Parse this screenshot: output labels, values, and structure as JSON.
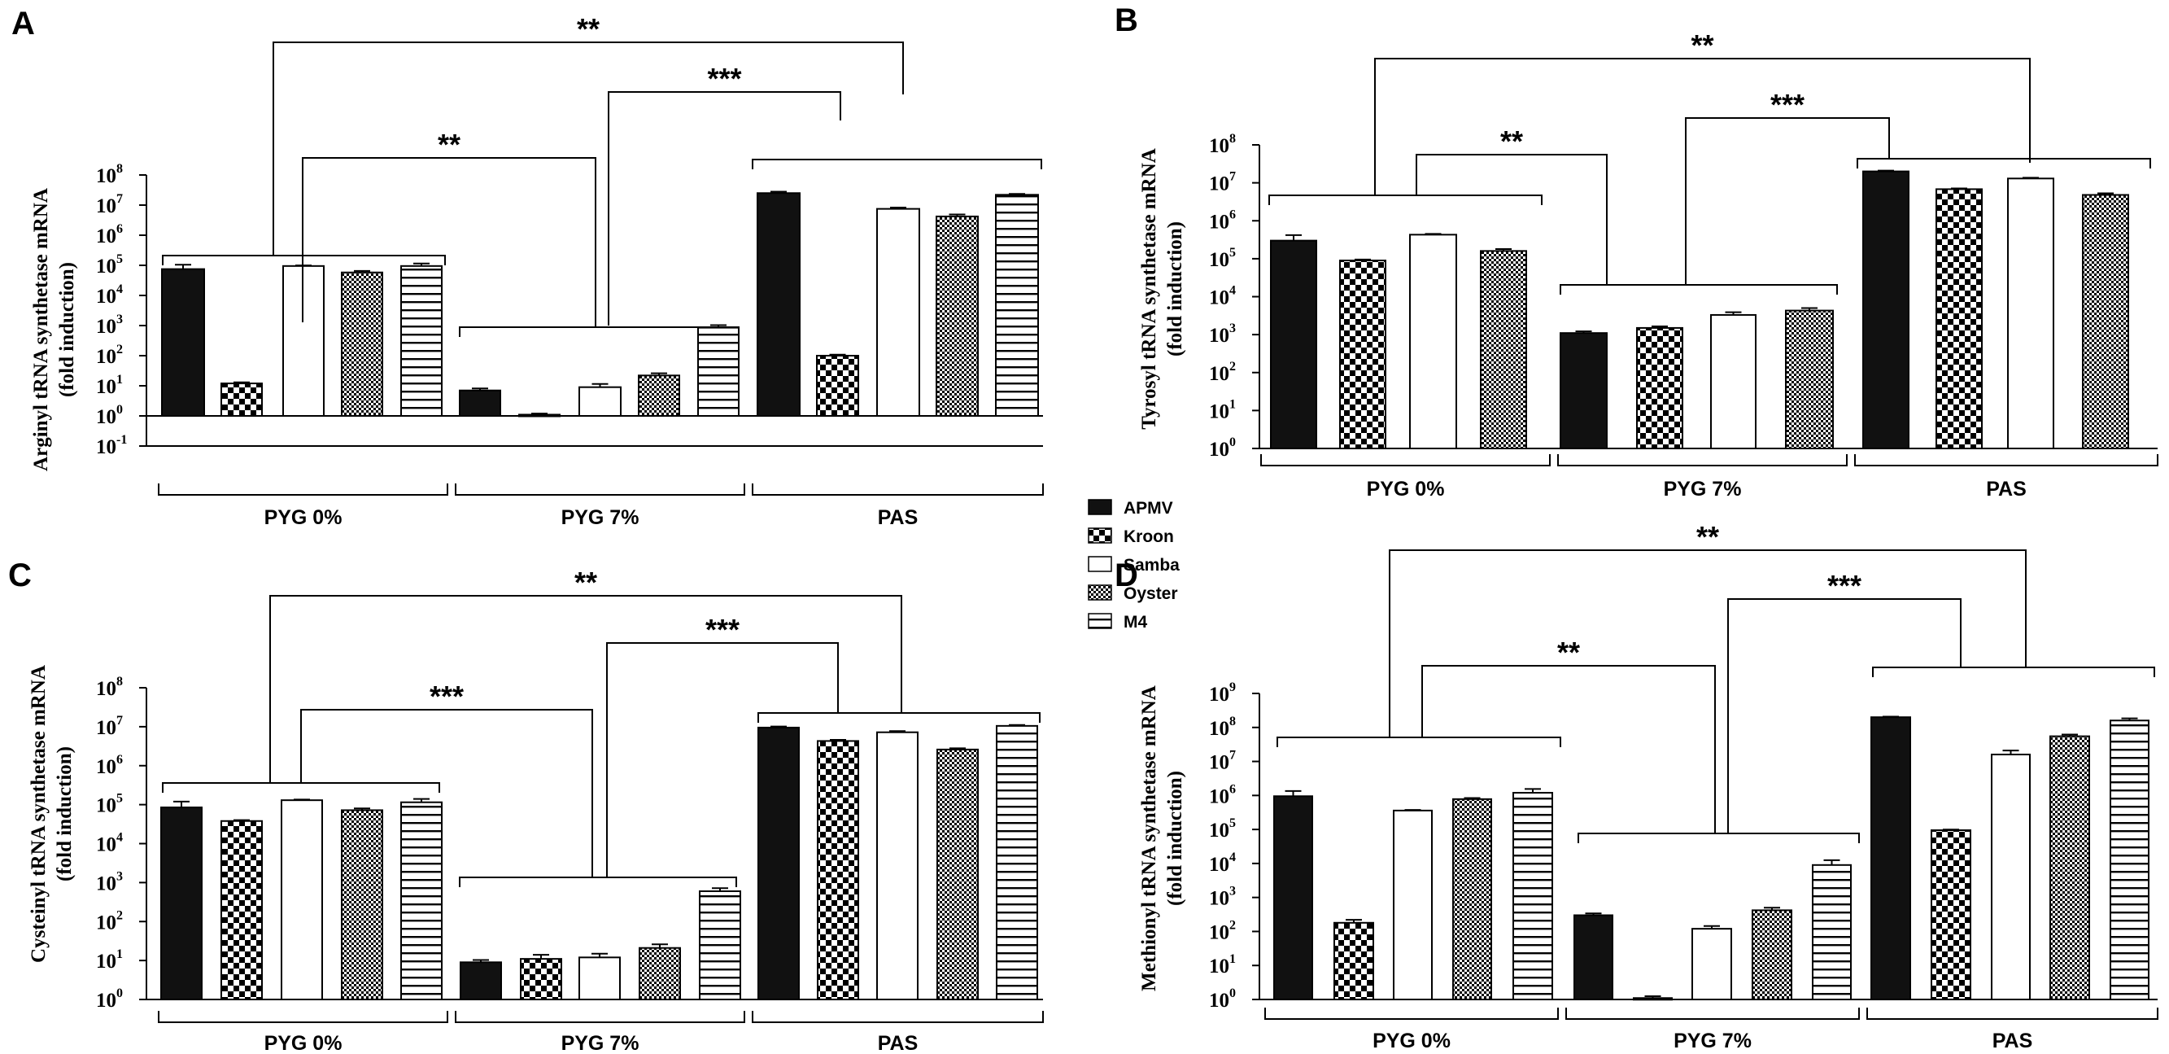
{
  "legend": [
    "APMV",
    "Kroon",
    "Samba",
    "Oyster",
    "M4"
  ],
  "group_labels": [
    "PYG 0%",
    "PYG 7%",
    "PAS"
  ],
  "chart_data": [
    {
      "panel": "A",
      "type": "bar",
      "scale": "log10",
      "ylabel_line1": "Arginyl tRNA synthetase mRNA",
      "ylabel_line2": "(fold induction)",
      "ylim_exp": [
        -1,
        8
      ],
      "y_ticks_exp": [
        -1,
        0,
        1,
        2,
        3,
        4,
        5,
        6,
        7,
        8
      ],
      "categories": [
        "PYG 0%",
        "PYG 7%",
        "PAS"
      ],
      "series": [
        {
          "name": "APMV",
          "values": [
            75000,
            7,
            25000000
          ],
          "errors": [
            30000,
            1.2,
            3000000
          ]
        },
        {
          "name": "Kroon",
          "values": [
            12,
            1.1,
            100
          ],
          "errors": [
            1,
            0.1,
            8
          ]
        },
        {
          "name": "Samba",
          "values": [
            95000,
            9,
            7500000
          ],
          "errors": [
            4000,
            2.5,
            800000
          ]
        },
        {
          "name": "Oyster",
          "values": [
            58000,
            22,
            4200000
          ],
          "errors": [
            7000,
            4,
            700000
          ]
        },
        {
          "name": "M4",
          "values": [
            95000,
            850,
            22000000
          ],
          "errors": [
            20000,
            180,
            1500000
          ]
        }
      ],
      "significance": [
        {
          "label": "**",
          "between": [
            "PYG 0%",
            "PAS"
          ]
        },
        {
          "label": "**",
          "between": [
            "PYG 0%",
            "PYG 7%"
          ]
        },
        {
          "label": "***",
          "between": [
            "PYG 7%",
            "PAS"
          ]
        }
      ]
    },
    {
      "panel": "B",
      "type": "bar",
      "scale": "log10",
      "ylabel_line1": "Tyrosyl tRNA synthetase mRNA",
      "ylabel_line2": "(fold induction)",
      "ylim_exp": [
        0,
        8
      ],
      "y_ticks_exp": [
        0,
        1,
        2,
        3,
        4,
        5,
        6,
        7,
        8
      ],
      "categories": [
        "PYG 0%",
        "PYG 7%",
        "PAS"
      ],
      "series": [
        {
          "name": "APMV",
          "values": [
            300000,
            1100,
            20000000
          ],
          "errors": [
            120000,
            120,
            1000000
          ]
        },
        {
          "name": "Kroon",
          "values": [
            90000,
            1500,
            6800000
          ],
          "errors": [
            5000,
            150,
            300000
          ]
        },
        {
          "name": "Samba",
          "values": [
            430000,
            3300,
            13000000
          ],
          "errors": [
            20000,
            600,
            600000
          ]
        },
        {
          "name": "Oyster",
          "values": [
            160000,
            4300,
            4800000
          ],
          "errors": [
            20000,
            700,
            500000
          ]
        }
      ],
      "significance": [
        {
          "label": "**",
          "between": [
            "PYG 0%",
            "PAS"
          ]
        },
        {
          "label": "**",
          "between": [
            "PYG 0%",
            "PYG 7%"
          ]
        },
        {
          "label": "***",
          "between": [
            "PYG 7%",
            "PAS"
          ]
        }
      ]
    },
    {
      "panel": "C",
      "type": "bar",
      "scale": "log10",
      "ylabel_line1": "Cysteinyl tRNA synthetase mRNA",
      "ylabel_line2": "(fold induction)",
      "ylim_exp": [
        0,
        8
      ],
      "y_ticks_exp": [
        0,
        1,
        2,
        3,
        4,
        5,
        6,
        7,
        8
      ],
      "categories": [
        "PYG 0%",
        "PYG 7%",
        "PAS"
      ],
      "series": [
        {
          "name": "APMV",
          "values": [
            85000,
            9,
            9500000
          ],
          "errors": [
            35000,
            1.3,
            600000
          ]
        },
        {
          "name": "Kroon",
          "values": [
            38000,
            11,
            4300000
          ],
          "errors": [
            2000,
            3,
            300000
          ]
        },
        {
          "name": "Samba",
          "values": [
            130000,
            12,
            7200000
          ],
          "errors": [
            5000,
            3,
            500000
          ]
        },
        {
          "name": "Oyster",
          "values": [
            72000,
            21,
            2600000
          ],
          "errors": [
            8000,
            5,
            200000
          ]
        },
        {
          "name": "M4",
          "values": [
            115000,
            600,
            10500000
          ],
          "errors": [
            25000,
            120,
            600000
          ]
        }
      ],
      "significance": [
        {
          "label": "**",
          "between": [
            "PYG 0%",
            "PAS"
          ]
        },
        {
          "label": "***",
          "between": [
            "PYG 0%",
            "PYG 7%"
          ]
        },
        {
          "label": "***",
          "between": [
            "PYG 7%",
            "PAS"
          ]
        }
      ]
    },
    {
      "panel": "D",
      "type": "bar",
      "scale": "log10",
      "ylabel_line1": "Methionyl tRNA synthetase mRNA",
      "ylabel_line2": "(fold induction)",
      "ylim_exp": [
        0,
        9
      ],
      "y_ticks_exp": [
        0,
        1,
        2,
        3,
        4,
        5,
        6,
        7,
        8,
        9
      ],
      "categories": [
        "PYG 0%",
        "PYG 7%",
        "PAS"
      ],
      "series": [
        {
          "name": "APMV",
          "values": [
            950000,
            300,
            200000000
          ],
          "errors": [
            400000,
            40,
            8000000
          ]
        },
        {
          "name": "Kroon",
          "values": [
            180,
            1.1,
            95000
          ],
          "errors": [
            40,
            0.15,
            4000
          ]
        },
        {
          "name": "Samba",
          "values": [
            360000,
            120,
            16000000
          ],
          "errors": [
            15000,
            25,
            5000000
          ]
        },
        {
          "name": "Oyster",
          "values": [
            780000,
            420,
            55000000
          ],
          "errors": [
            60000,
            80,
            7000000
          ]
        },
        {
          "name": "M4",
          "values": [
            1200000,
            9000,
            160000000
          ],
          "errors": [
            350000,
            3500,
            25000000
          ]
        }
      ],
      "significance": [
        {
          "label": "**",
          "between": [
            "PYG 0%",
            "PAS"
          ]
        },
        {
          "label": "**",
          "between": [
            "PYG 0%",
            "PYG 7%"
          ]
        },
        {
          "label": "***",
          "between": [
            "PYG 7%",
            "PAS"
          ]
        }
      ]
    }
  ]
}
